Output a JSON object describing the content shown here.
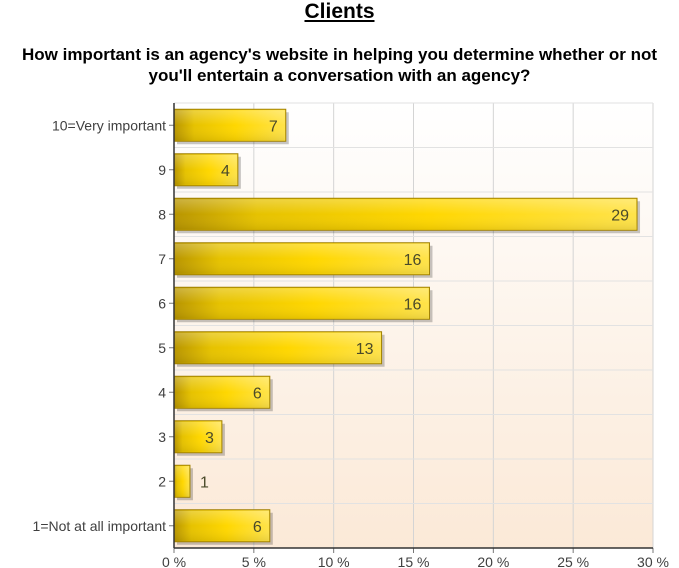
{
  "page": {
    "heading": "Clients"
  },
  "chart_data": {
    "type": "bar",
    "orientation": "horizontal",
    "title": "How important is an agency's website in helping you determine whether or not you'll entertain a conversation with an agency?",
    "categories": [
      "10=Very important",
      "9",
      "8",
      "7",
      "6",
      "5",
      "4",
      "3",
      "2",
      "1=Not at all important"
    ],
    "values": [
      7,
      4,
      29,
      16,
      16,
      13,
      6,
      3,
      1,
      6
    ],
    "xlim": [
      0,
      30
    ],
    "xticks": [
      0,
      5,
      10,
      15,
      20,
      25,
      30
    ],
    "xtick_labels": [
      "0 %",
      "5 %",
      "10 %",
      "15 %",
      "20 %",
      "25 %",
      "30 %"
    ],
    "grid": true,
    "bar_color": "#ffd700",
    "bar_border_color": "#a08000"
  }
}
